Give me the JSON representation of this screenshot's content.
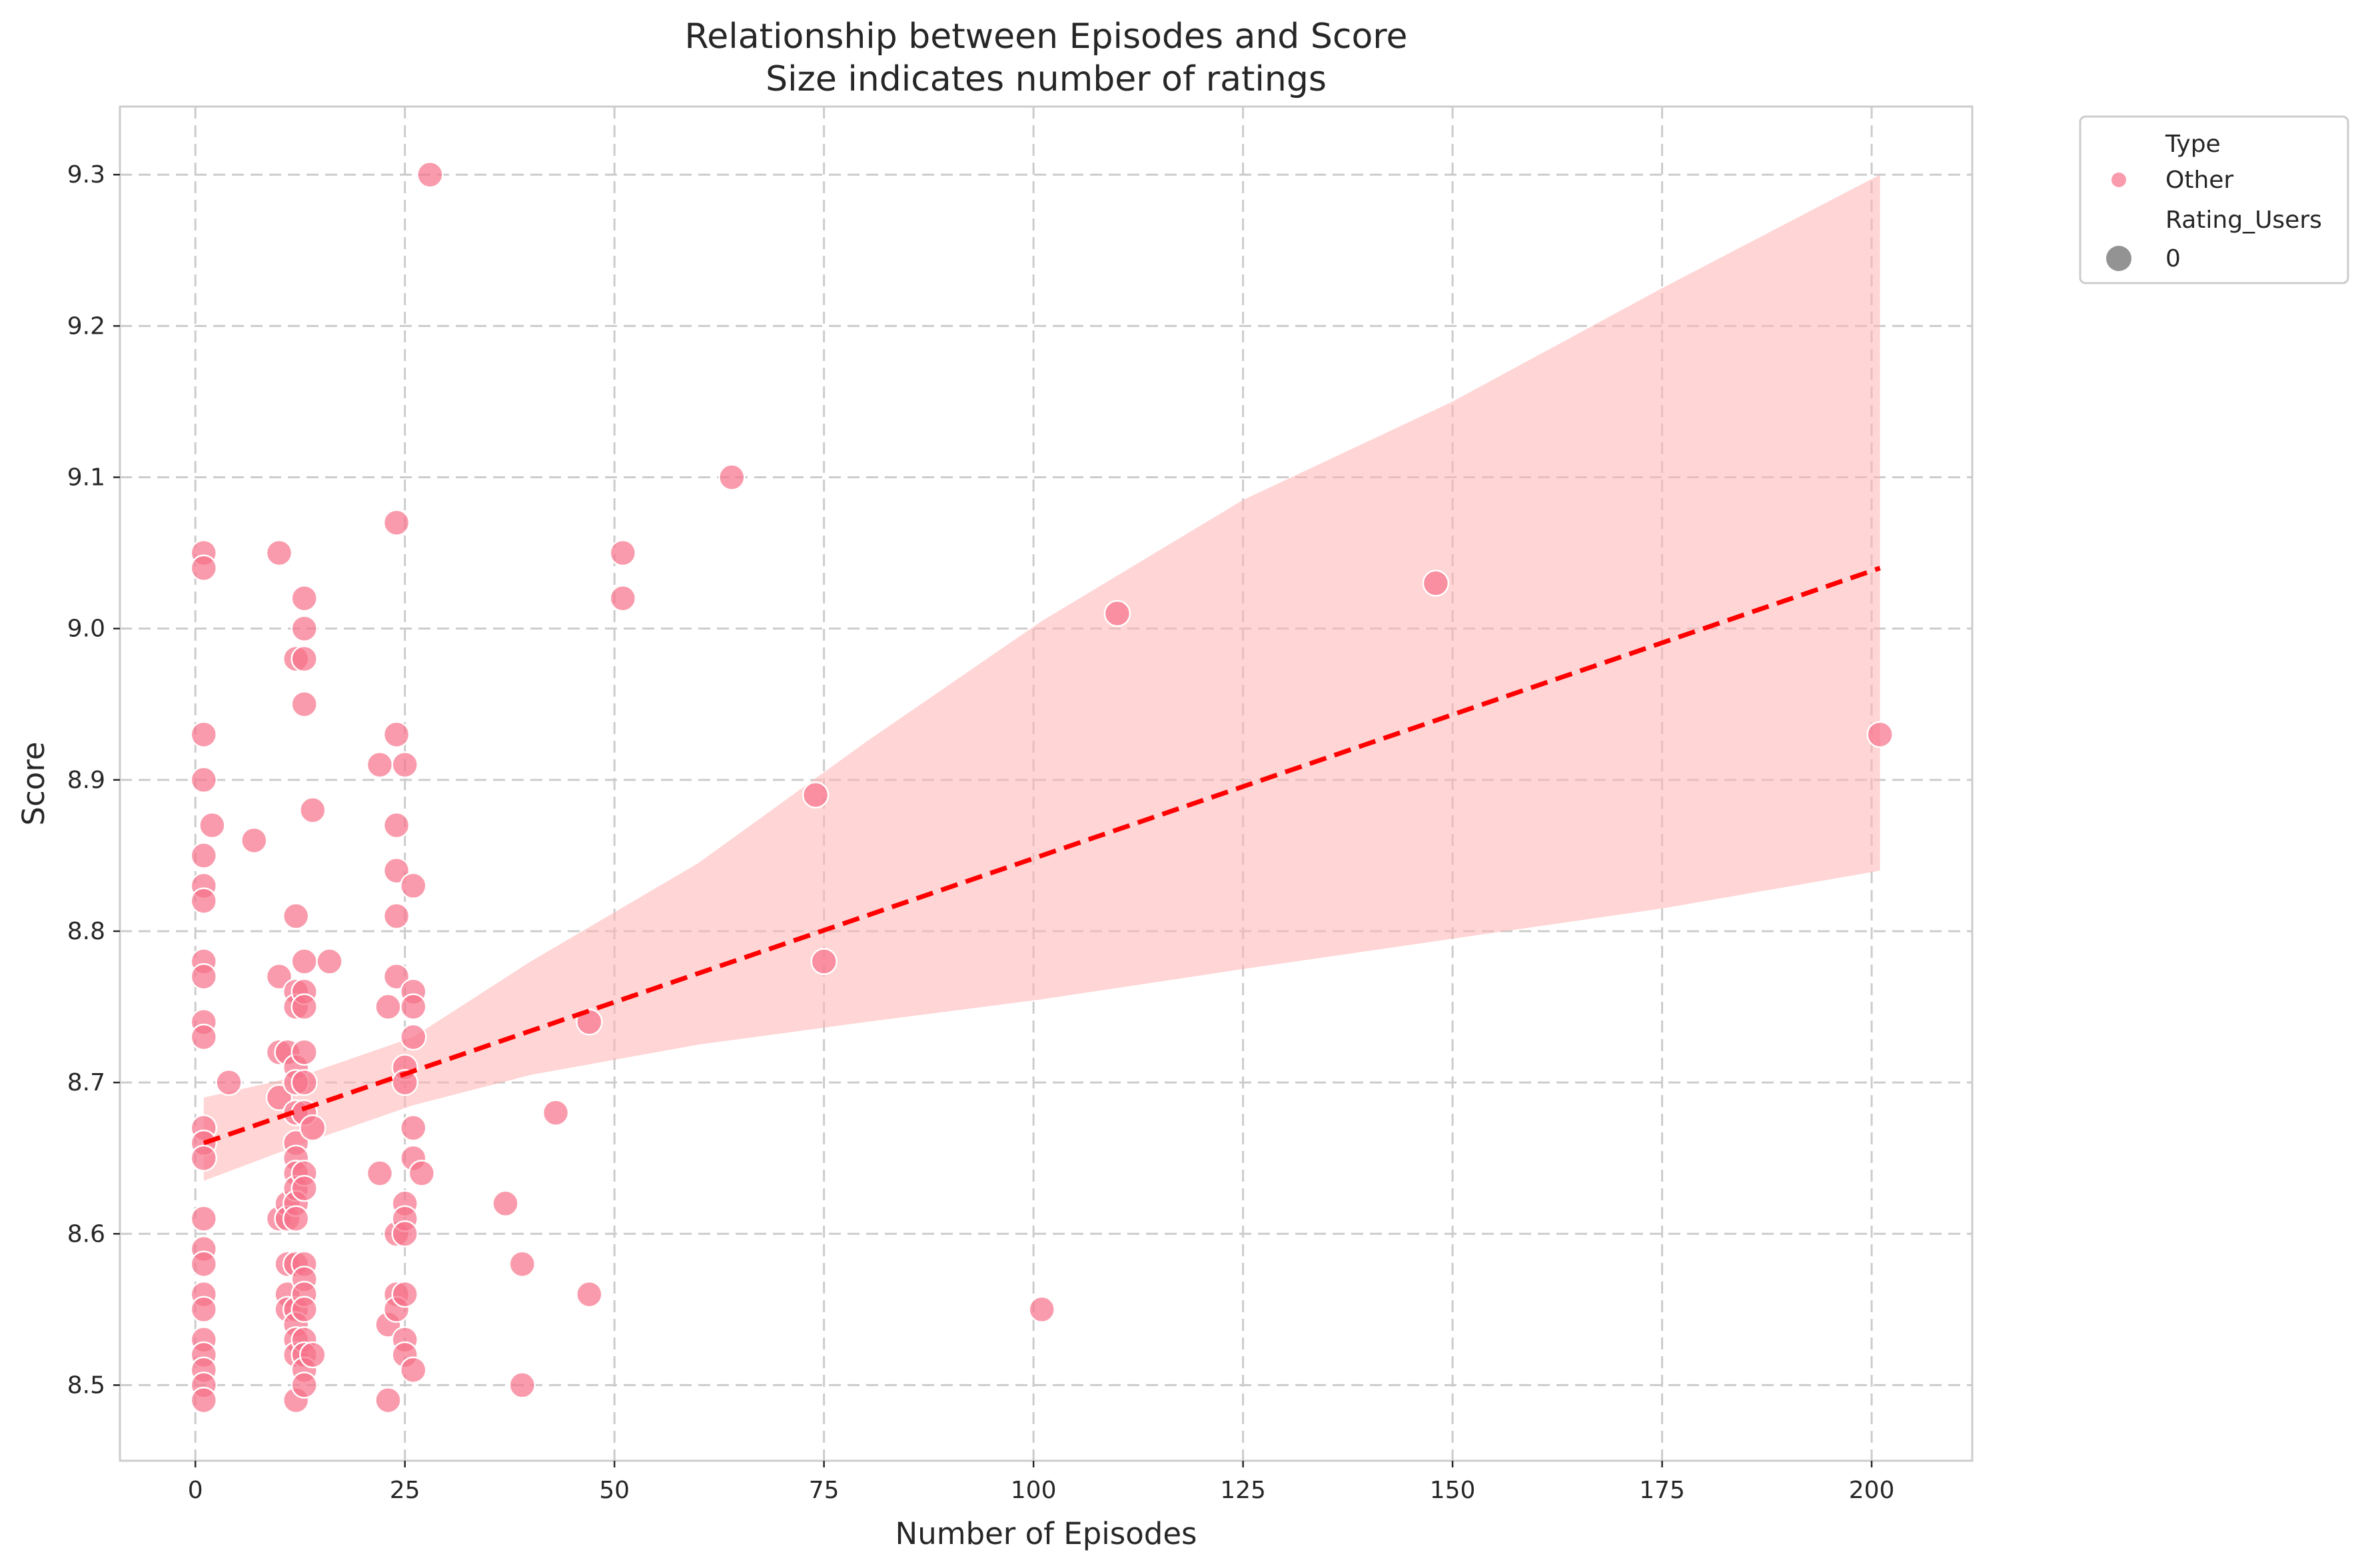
{
  "chart_data": {
    "type": "scatter",
    "title": "Relationship between Episodes and Score",
    "subtitle": "Size indicates number of ratings",
    "xlabel": "Number of Episodes",
    "ylabel": "Score",
    "xlim": [
      -9,
      212
    ],
    "ylim": [
      8.45,
      9.345
    ],
    "xticks": [
      "0",
      "25",
      "50",
      "75",
      "100",
      "125",
      "150",
      "175",
      "200"
    ],
    "yticks": [
      "8.5",
      "8.6",
      "8.7",
      "8.8",
      "8.9",
      "9.0",
      "9.1",
      "9.2",
      "9.3"
    ],
    "grid": true,
    "legend": {
      "placement": "outside-top-right",
      "hue_title": "Type",
      "hue_entry": "Other",
      "size_title": "Rating_Users",
      "size_entry": "0"
    },
    "colors": {
      "points": "#f77189",
      "regression_line": "#ff0000",
      "confidence_band": "#ffb3b3",
      "legend_size_marker": "#808080"
    },
    "series": [
      {
        "name": "Other",
        "points": [
          [
            1,
            9.05
          ],
          [
            1,
            9.04
          ],
          [
            1,
            8.93
          ],
          [
            1,
            8.9
          ],
          [
            1,
            8.85
          ],
          [
            1,
            8.83
          ],
          [
            1,
            8.82
          ],
          [
            1,
            8.78
          ],
          [
            1,
            8.77
          ],
          [
            1,
            8.74
          ],
          [
            1,
            8.73
          ],
          [
            1,
            8.67
          ],
          [
            1,
            8.66
          ],
          [
            1,
            8.65
          ],
          [
            1,
            8.61
          ],
          [
            1,
            8.59
          ],
          [
            1,
            8.58
          ],
          [
            1,
            8.56
          ],
          [
            1,
            8.55
          ],
          [
            1,
            8.53
          ],
          [
            1,
            8.52
          ],
          [
            1,
            8.51
          ],
          [
            1,
            8.5
          ],
          [
            1,
            8.49
          ],
          [
            2,
            8.87
          ],
          [
            4,
            8.7
          ],
          [
            7,
            8.86
          ],
          [
            10,
            9.05
          ],
          [
            10,
            8.77
          ],
          [
            10,
            8.72
          ],
          [
            10,
            8.69
          ],
          [
            10,
            8.61
          ],
          [
            11,
            8.72
          ],
          [
            11,
            8.62
          ],
          [
            11,
            8.61
          ],
          [
            11,
            8.58
          ],
          [
            11,
            8.56
          ],
          [
            11,
            8.55
          ],
          [
            12,
            8.98
          ],
          [
            12,
            8.81
          ],
          [
            12,
            8.76
          ],
          [
            12,
            8.75
          ],
          [
            12,
            8.71
          ],
          [
            12,
            8.7
          ],
          [
            12,
            8.68
          ],
          [
            12,
            8.66
          ],
          [
            12,
            8.65
          ],
          [
            12,
            8.64
          ],
          [
            12,
            8.63
          ],
          [
            12,
            8.62
          ],
          [
            12,
            8.61
          ],
          [
            12,
            8.58
          ],
          [
            12,
            8.55
          ],
          [
            12,
            8.54
          ],
          [
            12,
            8.53
          ],
          [
            12,
            8.52
          ],
          [
            12,
            8.49
          ],
          [
            13,
            9.02
          ],
          [
            13,
            9.0
          ],
          [
            13,
            8.98
          ],
          [
            13,
            8.95
          ],
          [
            13,
            8.78
          ],
          [
            13,
            8.76
          ],
          [
            13,
            8.75
          ],
          [
            13,
            8.72
          ],
          [
            13,
            8.7
          ],
          [
            13,
            8.68
          ],
          [
            13,
            8.64
          ],
          [
            13,
            8.63
          ],
          [
            13,
            8.58
          ],
          [
            13,
            8.57
          ],
          [
            13,
            8.56
          ],
          [
            13,
            8.55
          ],
          [
            13,
            8.53
          ],
          [
            13,
            8.52
          ],
          [
            13,
            8.51
          ],
          [
            13,
            8.5
          ],
          [
            14,
            8.88
          ],
          [
            14,
            8.67
          ],
          [
            14,
            8.52
          ],
          [
            16,
            8.78
          ],
          [
            22,
            8.91
          ],
          [
            22,
            8.64
          ],
          [
            23,
            8.75
          ],
          [
            23,
            8.54
          ],
          [
            23,
            8.49
          ],
          [
            24,
            9.07
          ],
          [
            24,
            8.93
          ],
          [
            24,
            8.87
          ],
          [
            24,
            8.84
          ],
          [
            24,
            8.81
          ],
          [
            24,
            8.77
          ],
          [
            24,
            8.6
          ],
          [
            24,
            8.56
          ],
          [
            24,
            8.55
          ],
          [
            25,
            8.91
          ],
          [
            25,
            8.71
          ],
          [
            25,
            8.7
          ],
          [
            25,
            8.62
          ],
          [
            25,
            8.61
          ],
          [
            25,
            8.6
          ],
          [
            25,
            8.56
          ],
          [
            25,
            8.53
          ],
          [
            25,
            8.52
          ],
          [
            26,
            8.83
          ],
          [
            26,
            8.76
          ],
          [
            26,
            8.75
          ],
          [
            26,
            8.73
          ],
          [
            26,
            8.67
          ],
          [
            26,
            8.65
          ],
          [
            26,
            8.51
          ],
          [
            27,
            8.64
          ],
          [
            28,
            9.3
          ],
          [
            37,
            8.62
          ],
          [
            39,
            8.58
          ],
          [
            39,
            8.5
          ],
          [
            43,
            8.68
          ],
          [
            47,
            8.74
          ],
          [
            47,
            8.56
          ],
          [
            51,
            9.05
          ],
          [
            51,
            9.02
          ],
          [
            64,
            9.1
          ],
          [
            74,
            8.89
          ],
          [
            75,
            8.78
          ],
          [
            101,
            8.55
          ],
          [
            110,
            9.01
          ],
          [
            148,
            9.03
          ],
          [
            201,
            8.93
          ]
        ]
      }
    ],
    "regression": {
      "x": [
        1,
        201
      ],
      "y": [
        8.66,
        9.04
      ],
      "ci_upper": [
        [
          1,
          8.69
        ],
        [
          13,
          8.705
        ],
        [
          26,
          8.73
        ],
        [
          40,
          8.78
        ],
        [
          60,
          8.845
        ],
        [
          80,
          8.925
        ],
        [
          101,
          9.005
        ],
        [
          125,
          9.085
        ],
        [
          150,
          9.15
        ],
        [
          175,
          9.225
        ],
        [
          201,
          9.3
        ]
      ],
      "ci_lower": [
        [
          1,
          8.635
        ],
        [
          13,
          8.66
        ],
        [
          26,
          8.685
        ],
        [
          40,
          8.705
        ],
        [
          60,
          8.725
        ],
        [
          80,
          8.74
        ],
        [
          101,
          8.755
        ],
        [
          125,
          8.775
        ],
        [
          150,
          8.795
        ],
        [
          175,
          8.815
        ],
        [
          201,
          8.84
        ]
      ]
    }
  }
}
